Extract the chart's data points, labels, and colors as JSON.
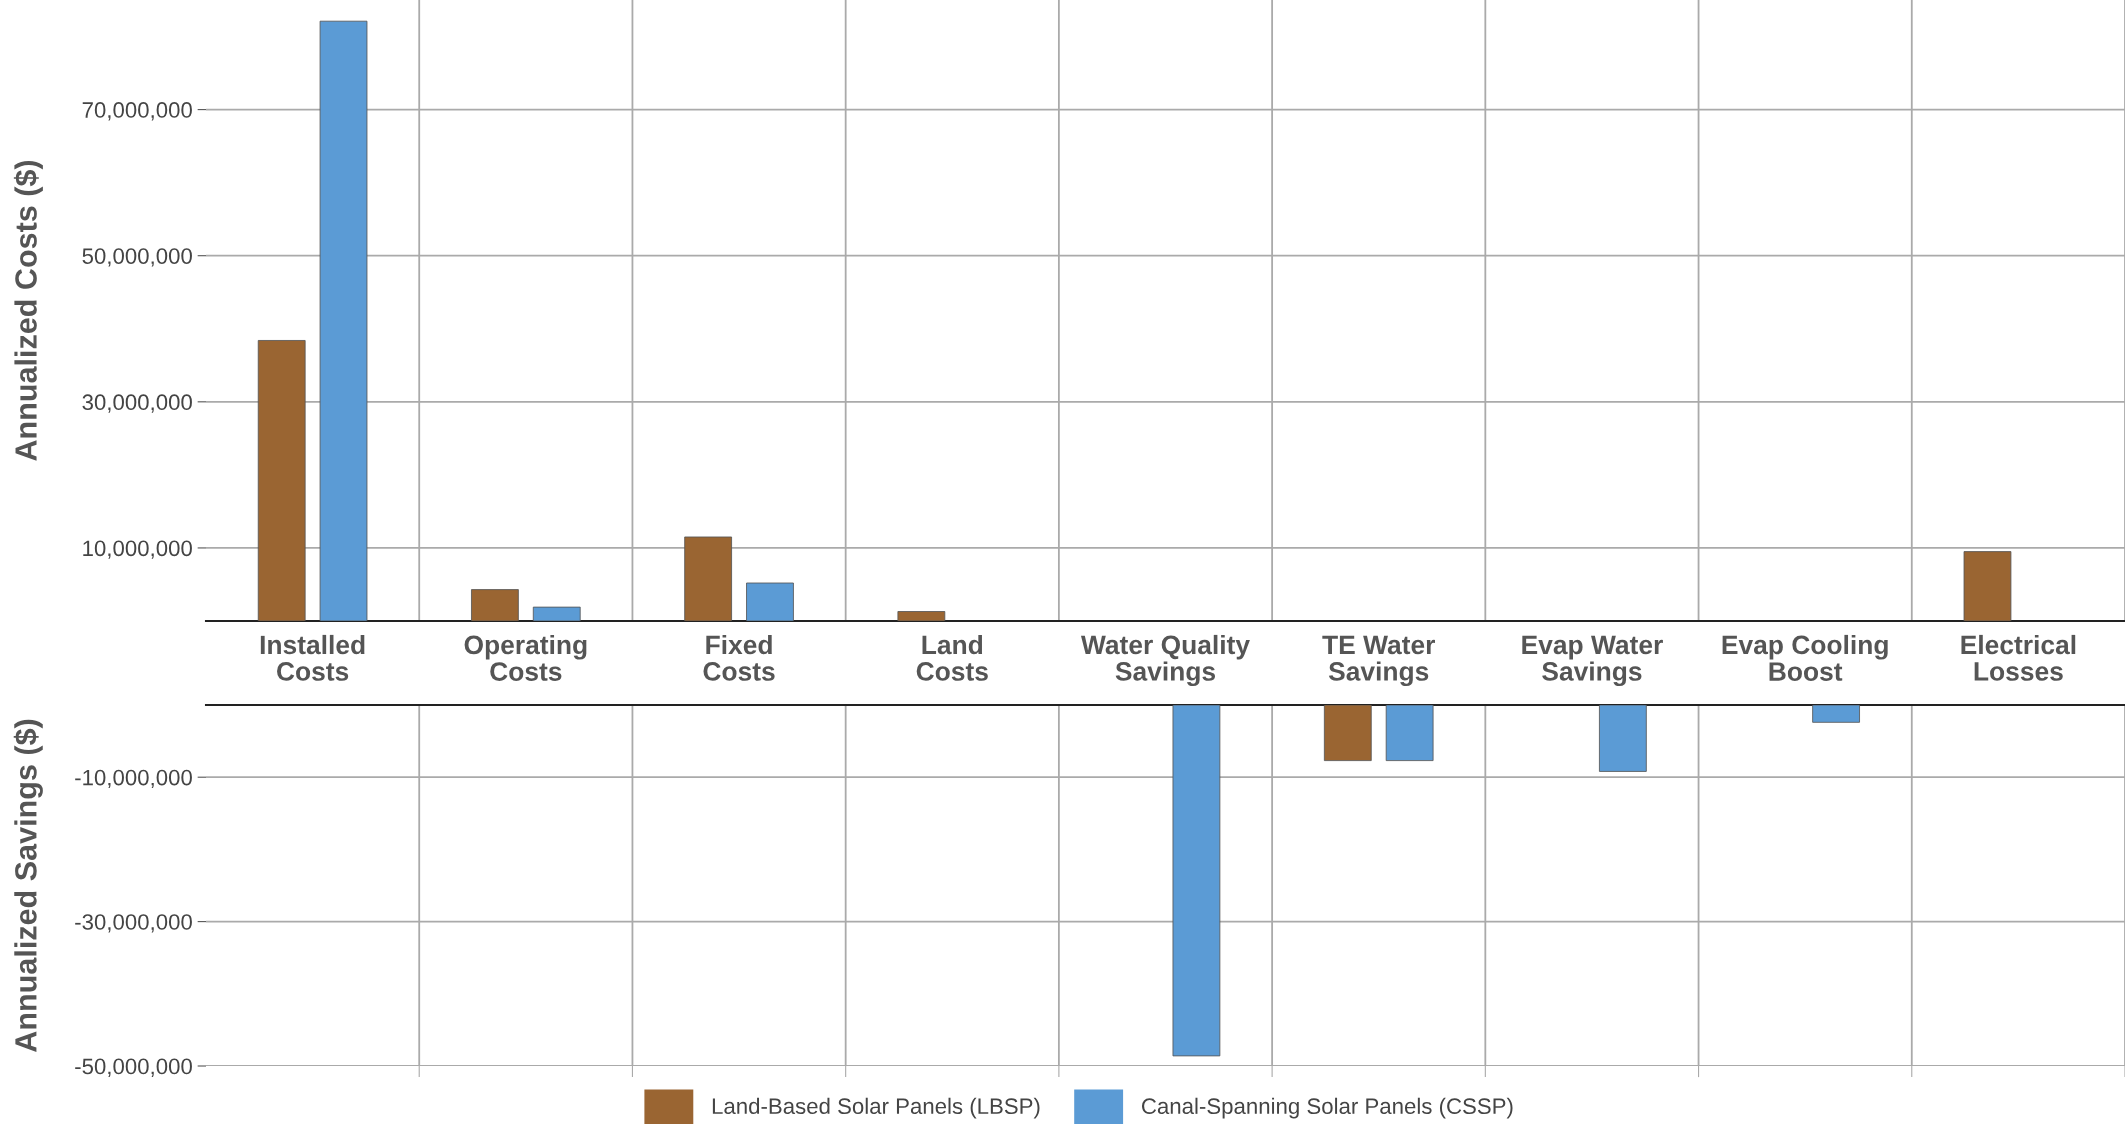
{
  "chart_data": [
    {
      "type": "bar",
      "ylabel": "Annualized Costs ($)",
      "categories": [
        "Installed\nCosts",
        "Operating\nCosts",
        "Fixed\nCosts",
        "Land\nCosts",
        "Water Quality\nSavings",
        "TE Water\nSavings",
        "Evap Water\nSavings",
        "Evap Cooling\nBoost",
        "Electrical\nLosses"
      ],
      "series": [
        {
          "color": "#9a6532",
          "values": [
            38400000,
            4300000,
            11500000,
            1300000,
            null,
            null,
            null,
            null,
            9500000
          ]
        },
        {
          "color": "#5b9bd5",
          "values": [
            82100000,
            1900000,
            5200000,
            null,
            null,
            null,
            null,
            null,
            null
          ]
        }
      ],
      "ylim": [
        0,
        85000000
      ],
      "yticks": [
        {
          "value": 10000000,
          "label": "10,000,000"
        },
        {
          "value": 30000000,
          "label": "30,000,000"
        },
        {
          "value": 50000000,
          "label": "50,000,000"
        },
        {
          "value": 70000000,
          "label": "70,000,000"
        }
      ],
      "grid": true
    },
    {
      "type": "bar",
      "ylabel": "Annualized Savings ($)",
      "categories": [
        null,
        null,
        null,
        null,
        null,
        null,
        null,
        null,
        null
      ],
      "series": [
        {
          "name": "Land-Based Solar Panels (LBSP)",
          "color": "#9a6532",
          "values": [
            null,
            null,
            null,
            null,
            null,
            -7700000,
            null,
            null,
            null
          ]
        },
        {
          "name": "Canal-Spanning Solar Panels (CSSP)",
          "color": "#5b9bd5",
          "values": [
            null,
            null,
            null,
            null,
            -48600000,
            -7700000,
            -9200000,
            -2400000,
            null
          ]
        }
      ],
      "ylim": [
        -50000000,
        0
      ],
      "yticks": [
        {
          "value": -10000000,
          "label": "-10,000,000"
        },
        {
          "value": -30000000,
          "label": "-30,000,000"
        },
        {
          "value": -50000000,
          "label": "-50,000,000"
        }
      ],
      "grid": true,
      "tick_labels": "y",
      "legend": "bottom"
    }
  ]
}
